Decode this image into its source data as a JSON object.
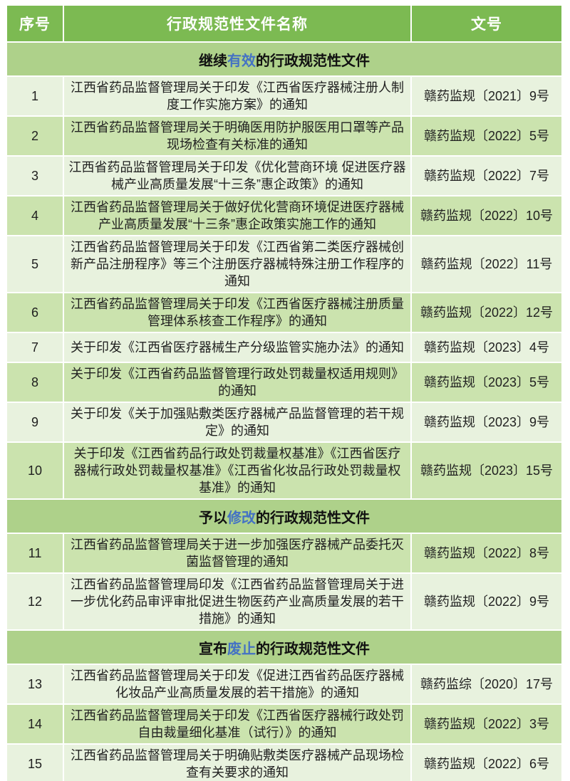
{
  "colors": {
    "header_bg": "#7cba52",
    "section_bg": "#aed18a",
    "row_light": "#e8f2de",
    "row_dark": "#cbe3ae",
    "highlight_blue": "#4472c4"
  },
  "table": {
    "headers": [
      "序号",
      "行政规范性文件名称",
      "文号"
    ],
    "sections": [
      {
        "title": {
          "prefix": "继续",
          "highlight": "有效",
          "suffix": "的行政规范性文件"
        },
        "rows": [
          {
            "no": "1",
            "name": "江西省药品监督管理局关于印发《江西省医疗器械注册人制度工作实施方案》的通知",
            "doc": "赣药监规〔2021〕9号",
            "shade": "light"
          },
          {
            "no": "2",
            "name": "江西省药品监督管理局关于明确医用防护服医用口罩等产品现场检查有关标准的通知",
            "doc": "赣药监规〔2022〕5号",
            "shade": "dark"
          },
          {
            "no": "3",
            "name": "江西省药品监督管理局关于印发《优化营商环境 促进医疗器械产业高质量发展“十三条”惠企政策》的通知",
            "doc": "赣药监规〔2022〕7号",
            "shade": "light"
          },
          {
            "no": "4",
            "name": "江西省药品监督管理局关于做好优化营商环境促进医疗器械产业高质量发展“十三条”惠企政策实施工作的通知",
            "doc": "赣药监规〔2022〕10号",
            "shade": "dark"
          },
          {
            "no": "5",
            "name": "江西省药品监督管理局关于印发《江西省第二类医疗器械创新产品注册程序》等三个注册医疗器械特殊注册工作程序的通知",
            "doc": "赣药监规〔2022〕11号",
            "shade": "light"
          },
          {
            "no": "6",
            "name": "江西省药品监督管理局关于印发《江西省医疗器械注册质量管理体系核查工作程序》的通知",
            "doc": "赣药监规〔2022〕12号",
            "shade": "dark"
          },
          {
            "no": "7",
            "name": "关于印发《江西省医疗器械生产分级监管实施办法》的通知",
            "doc": "赣药监规〔2023〕4号",
            "shade": "light"
          },
          {
            "no": "8",
            "name": "关于印发《江西省药品监督管理行政处罚裁量权适用规则》的通知",
            "doc": "赣药监规〔2023〕5号",
            "shade": "dark"
          },
          {
            "no": "9",
            "name": "关于印发《关于加强贴敷类医疗器械产品监督管理的若干规定》的通知",
            "doc": "赣药监规〔2023〕9号",
            "shade": "light"
          },
          {
            "no": "10",
            "name": "关于印发《江西省药品行政处罚裁量权基准》《江西省医疗器械行政处罚裁量权基准》《江西省化妆品行政处罚裁量权基准》的通知",
            "doc": "赣药监规〔2023〕15号",
            "shade": "dark"
          }
        ]
      },
      {
        "title": {
          "prefix": "予以",
          "highlight": "修改",
          "suffix": "的行政规范性文件"
        },
        "rows": [
          {
            "no": "11",
            "name": "江西省药品监督管理局关于进一步加强医疗器械产品委托灭菌监督管理的通知",
            "doc": "赣药监规〔2022〕8号",
            "shade": "dark"
          },
          {
            "no": "12",
            "name": "江西省药品监督管理局印发《江西省药品监督管理局关于进一步优化药品审评审批促进生物医药产业高质量发展的若干措施》的通知",
            "doc": "赣药监规〔2022〕9号",
            "shade": "light"
          }
        ]
      },
      {
        "title": {
          "prefix": "宣布",
          "highlight": "废止",
          "suffix": "的行政规范性文件"
        },
        "rows": [
          {
            "no": "13",
            "name": "江西省药品监督管理局关于印发《促进江西省药品医疗器械化妆品产业高质量发展的若干措施》的通知",
            "doc": "赣药监综〔2020〕17号",
            "shade": "light"
          },
          {
            "no": "14",
            "name": "江西省药品监督管理局关于印发《江西省医疗器械行政处罚自由裁量细化基准（试行）》的通知",
            "doc": "赣药监规〔2022〕3号",
            "shade": "dark"
          },
          {
            "no": "15",
            "name": "江西省药品监督管理局关于明确贴敷类医疗器械产品现场检查有关要求的通知",
            "doc": "赣药监规〔2022〕6号",
            "shade": "light"
          }
        ]
      }
    ]
  }
}
